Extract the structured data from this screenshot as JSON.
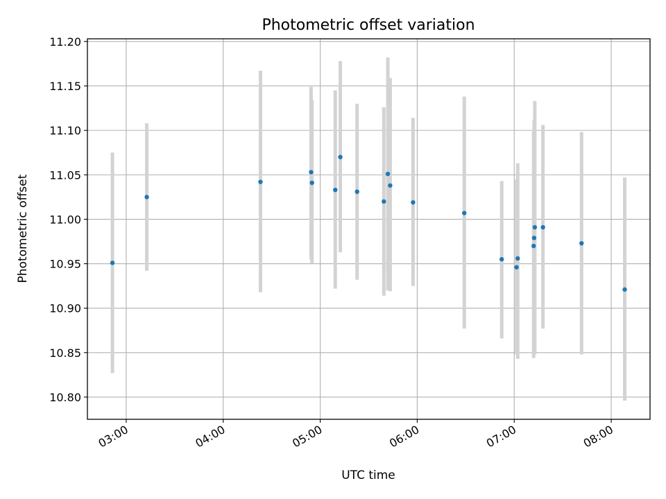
{
  "chart_data": {
    "type": "scatter",
    "title": "Photometric offset variation",
    "xlabel": "UTC time",
    "ylabel": "Photometric offset",
    "x_unit": "UTC hour of day",
    "xlim": [
      2.6,
      8.4
    ],
    "ylim": [
      10.775,
      11.203
    ],
    "grid": true,
    "point_color": "#1f77b4",
    "errorbar_color": "#d3d3d3",
    "x_ticks": [
      {
        "value": 3,
        "label": "03:00"
      },
      {
        "value": 4,
        "label": "04:00"
      },
      {
        "value": 5,
        "label": "05:00"
      },
      {
        "value": 6,
        "label": "06:00"
      },
      {
        "value": 7,
        "label": "07:00"
      },
      {
        "value": 8,
        "label": "08:00"
      }
    ],
    "y_ticks": [
      {
        "value": 10.8,
        "label": "10.80"
      },
      {
        "value": 10.85,
        "label": "10.85"
      },
      {
        "value": 10.9,
        "label": "10.90"
      },
      {
        "value": 10.95,
        "label": "10.95"
      },
      {
        "value": 11.0,
        "label": "11.00"
      },
      {
        "value": 11.05,
        "label": "11.05"
      },
      {
        "value": 11.1,
        "label": "11.10"
      },
      {
        "value": 11.15,
        "label": "11.15"
      },
      {
        "value": 11.2,
        "label": "11.20"
      }
    ],
    "points": [
      {
        "x": 2.858,
        "y": 10.951,
        "err_low": 10.827,
        "err_high": 11.075
      },
      {
        "x": 3.212,
        "y": 11.025,
        "err_low": 10.942,
        "err_high": 11.108
      },
      {
        "x": 4.384,
        "y": 11.042,
        "err_low": 10.918,
        "err_high": 11.167
      },
      {
        "x": 4.906,
        "y": 11.053,
        "err_low": 10.955,
        "err_high": 11.149
      },
      {
        "x": 4.915,
        "y": 11.041,
        "err_low": 10.95,
        "err_high": 11.134
      },
      {
        "x": 5.155,
        "y": 11.033,
        "err_low": 10.922,
        "err_high": 11.145
      },
      {
        "x": 5.207,
        "y": 11.07,
        "err_low": 10.963,
        "err_high": 11.178
      },
      {
        "x": 5.38,
        "y": 11.031,
        "err_low": 10.932,
        "err_high": 11.13
      },
      {
        "x": 5.656,
        "y": 11.02,
        "err_low": 10.914,
        "err_high": 11.126
      },
      {
        "x": 5.697,
        "y": 11.051,
        "err_low": 10.92,
        "err_high": 11.182
      },
      {
        "x": 5.721,
        "y": 11.038,
        "err_low": 10.919,
        "err_high": 11.159
      },
      {
        "x": 5.957,
        "y": 11.019,
        "err_low": 10.925,
        "err_high": 11.114
      },
      {
        "x": 6.485,
        "y": 11.007,
        "err_low": 10.877,
        "err_high": 11.138
      },
      {
        "x": 6.871,
        "y": 10.955,
        "err_low": 10.866,
        "err_high": 11.043
      },
      {
        "x": 7.024,
        "y": 10.946,
        "err_low": 10.848,
        "err_high": 11.045
      },
      {
        "x": 7.036,
        "y": 10.956,
        "err_low": 10.843,
        "err_high": 11.063
      },
      {
        "x": 7.2,
        "y": 10.97,
        "err_low": 10.844,
        "err_high": 11.098
      },
      {
        "x": 7.205,
        "y": 10.979,
        "err_low": 10.848,
        "err_high": 11.112
      },
      {
        "x": 7.212,
        "y": 10.991,
        "err_low": 10.848,
        "err_high": 11.133
      },
      {
        "x": 7.296,
        "y": 10.991,
        "err_low": 10.877,
        "err_high": 11.106
      },
      {
        "x": 7.694,
        "y": 10.973,
        "err_low": 10.848,
        "err_high": 11.098
      },
      {
        "x": 8.139,
        "y": 10.921,
        "err_low": 10.796,
        "err_high": 11.047
      }
    ]
  }
}
